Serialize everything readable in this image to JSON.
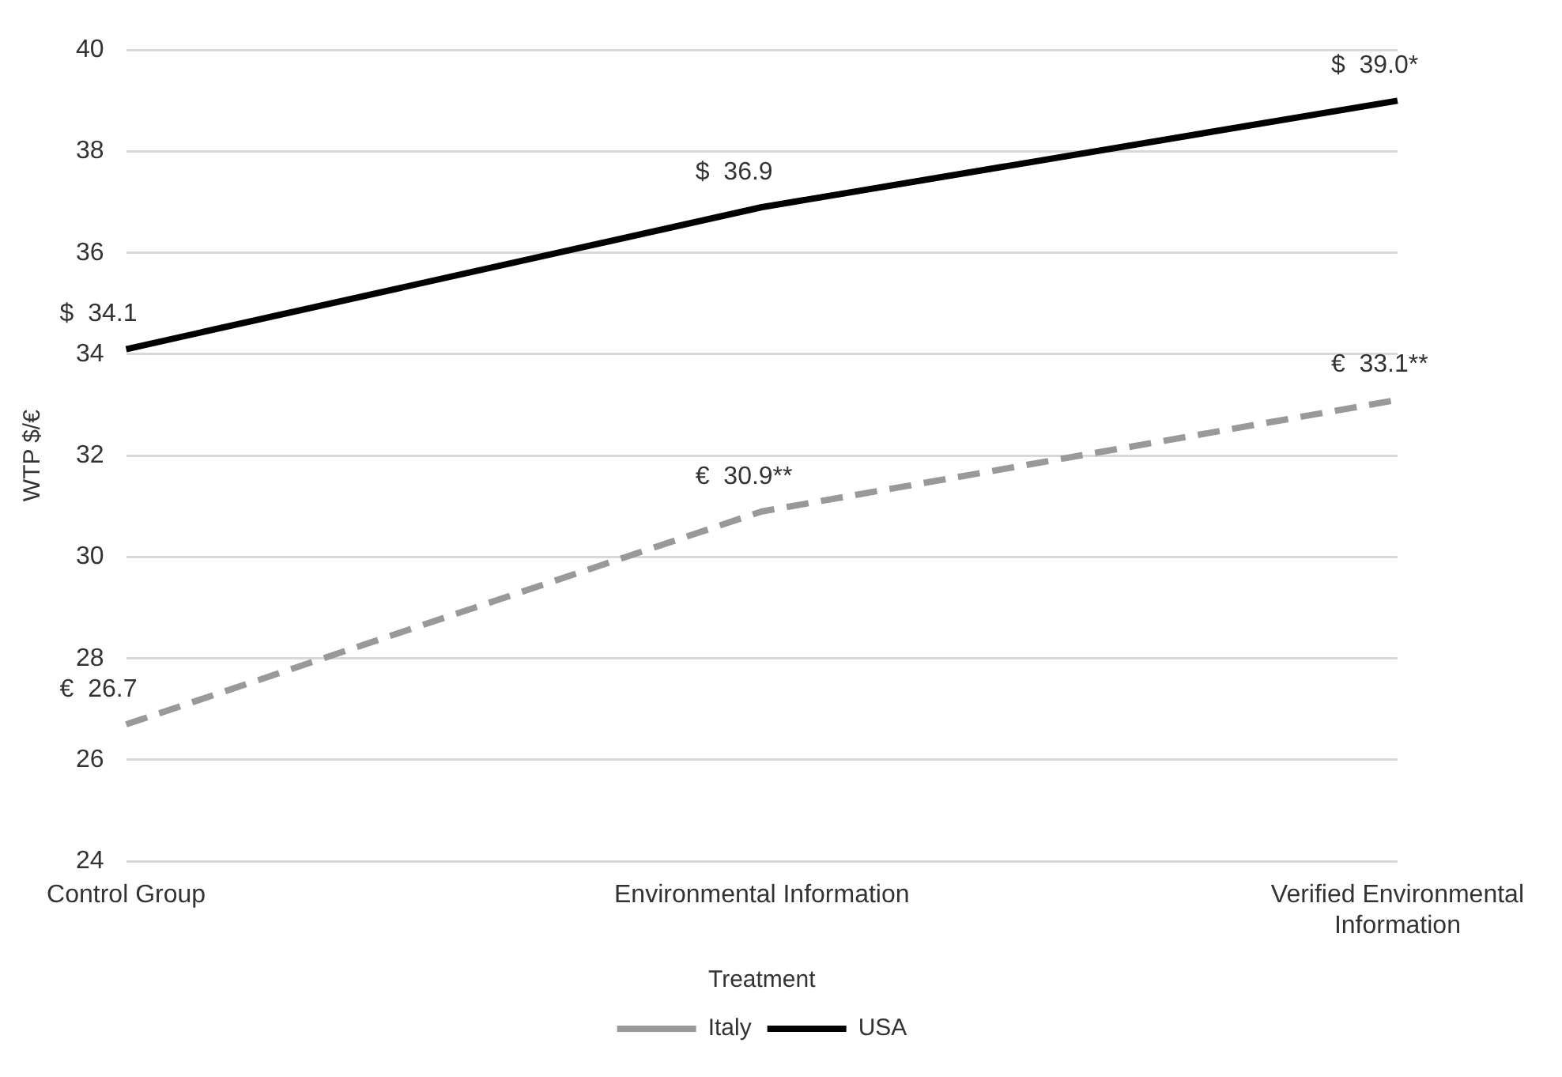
{
  "chart_data": {
    "type": "line",
    "xlabel": "Treatment",
    "ylabel": "WTP $/€",
    "categories": [
      "Control Group",
      "Environmental Information",
      "Verified Environmental Information"
    ],
    "series": [
      {
        "name": "Italy",
        "color": "#999999",
        "line_style": "dashed",
        "values": [
          26.7,
          30.9,
          33.1
        ],
        "value_labels": [
          "€  26.7",
          "€  30.9**",
          "€  33.1**"
        ]
      },
      {
        "name": "USA",
        "color": "#000000",
        "line_style": "solid",
        "values": [
          34.1,
          36.9,
          39.0
        ],
        "value_labels": [
          "$  34.1",
          "$  36.9",
          "$  39.0*"
        ]
      }
    ],
    "ylim": [
      24,
      40
    ],
    "yticks": [
      24,
      26,
      28,
      30,
      32,
      34,
      36,
      38,
      40
    ],
    "grid": "y",
    "legend": "bottom",
    "marker": "none"
  }
}
